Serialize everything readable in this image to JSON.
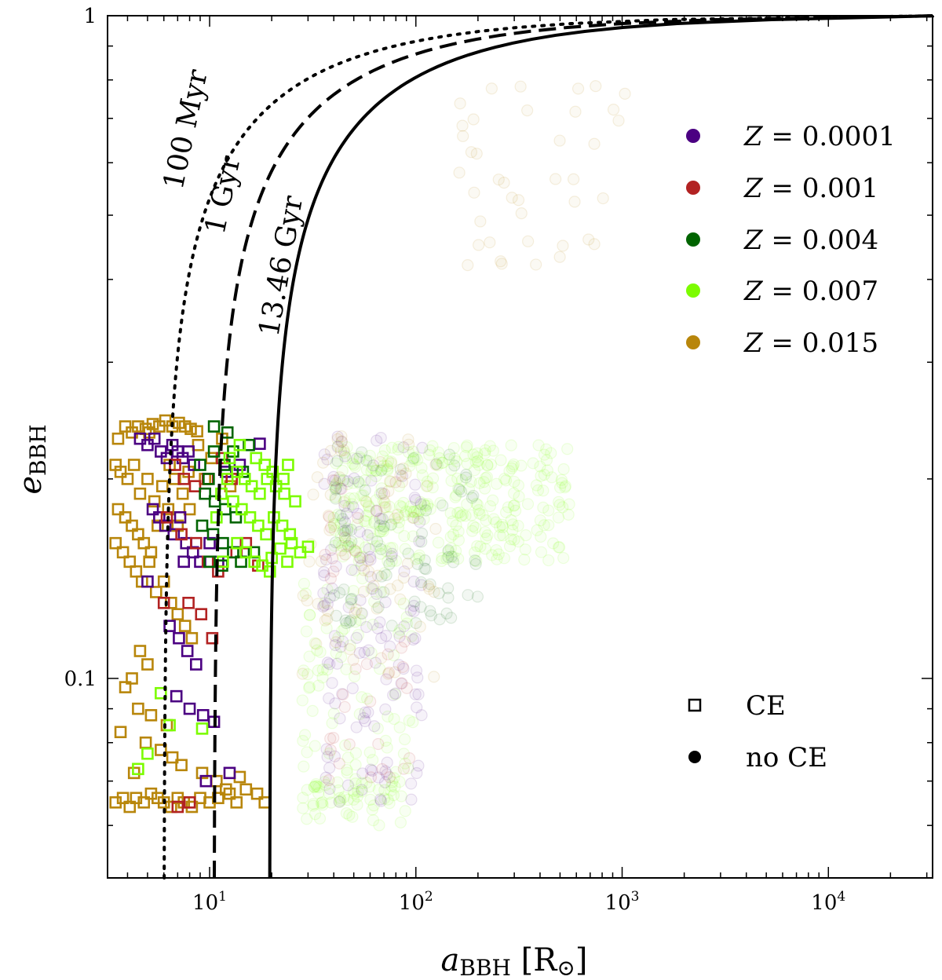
{
  "chart_data": {
    "type": "scatter",
    "title": "",
    "xlabel": {
      "base": "a",
      "sub": "BBH",
      "unit": " [R",
      "unit_sym": "⊙",
      "unit_close": "]"
    },
    "ylabel": {
      "base": "e",
      "sub": "BBH"
    },
    "x_scale": "log",
    "y_scale": "log",
    "xlim": [
      3.2,
      32000
    ],
    "ylim": [
      0.05,
      1.0
    ],
    "x_ticks": [
      {
        "value": 10,
        "base": "10",
        "exp": "1"
      },
      {
        "value": 100,
        "base": "10",
        "exp": "2"
      },
      {
        "value": 1000,
        "base": "10",
        "exp": "3"
      },
      {
        "value": 10000,
        "base": "10",
        "exp": "4"
      }
    ],
    "y_ticks": [
      {
        "value": 0.1,
        "label": "0.1"
      },
      {
        "value": 1.0,
        "label": "1"
      }
    ],
    "curves": [
      {
        "label": "100 Myr",
        "style": "dotted",
        "a0": 6.0
      },
      {
        "label": "1 Gyr",
        "style": "dashed",
        "a0": 10.5
      },
      {
        "label": "13.46 Gyr",
        "style": "solid",
        "a0": 19.5
      }
    ],
    "series": [
      {
        "name": "Z = 0.0001",
        "z_label": "Z",
        "z_value": "0.0001",
        "color": "#4b0082"
      },
      {
        "name": "Z = 0.001",
        "z_label": "Z",
        "z_value": "0.001",
        "color": "#b22222"
      },
      {
        "name": "Z = 0.004",
        "z_label": "Z",
        "z_value": "0.004",
        "color": "#006400"
      },
      {
        "name": "Z = 0.007",
        "z_label": "Z",
        "z_value": "0.007",
        "color": "#7cfc00"
      },
      {
        "name": "Z = 0.015",
        "z_label": "Z",
        "z_value": "0.015",
        "color": "#b8860b"
      }
    ],
    "marker_legend": [
      {
        "label": "CE",
        "marker": "open-square"
      },
      {
        "label": "no CE",
        "marker": "filled-circle"
      }
    ],
    "ce_points": [
      [
        3.5,
        0.065,
        4
      ],
      [
        3.8,
        0.066,
        4
      ],
      [
        4.1,
        0.064,
        4
      ],
      [
        4.4,
        0.066,
        4
      ],
      [
        4.8,
        0.065,
        4
      ],
      [
        5.2,
        0.067,
        4
      ],
      [
        5.6,
        0.066,
        4
      ],
      [
        6.0,
        0.065,
        4
      ],
      [
        6.5,
        0.064,
        4
      ],
      [
        7.0,
        0.066,
        4
      ],
      [
        7.5,
        0.065,
        4
      ],
      [
        8.2,
        0.064,
        4
      ],
      [
        9.0,
        0.066,
        4
      ],
      [
        10.0,
        0.065,
        4
      ],
      [
        11.0,
        0.066,
        4
      ],
      [
        12.5,
        0.067,
        4
      ],
      [
        13.5,
        0.065,
        4
      ],
      [
        15.0,
        0.068,
        4
      ],
      [
        17.0,
        0.067,
        4
      ],
      [
        18.5,
        0.065,
        4
      ],
      [
        3.6,
        0.23,
        4
      ],
      [
        3.9,
        0.24,
        4
      ],
      [
        4.2,
        0.235,
        4
      ],
      [
        4.5,
        0.24,
        4
      ],
      [
        4.9,
        0.238,
        4
      ],
      [
        5.3,
        0.242,
        4
      ],
      [
        5.7,
        0.24,
        4
      ],
      [
        6.1,
        0.245,
        4
      ],
      [
        6.6,
        0.24,
        4
      ],
      [
        7.1,
        0.243,
        4
      ],
      [
        7.6,
        0.24,
        4
      ],
      [
        8.1,
        0.238,
        4
      ],
      [
        8.7,
        0.236,
        4
      ],
      [
        3.5,
        0.21,
        4
      ],
      [
        3.7,
        0.205,
        4
      ],
      [
        4.0,
        0.2,
        4
      ],
      [
        4.3,
        0.21,
        4
      ],
      [
        4.6,
        0.19,
        4
      ],
      [
        5.0,
        0.2,
        4
      ],
      [
        5.4,
        0.185,
        4
      ],
      [
        5.9,
        0.195,
        4
      ],
      [
        6.3,
        0.18,
        4
      ],
      [
        3.6,
        0.18,
        4
      ],
      [
        3.9,
        0.175,
        4
      ],
      [
        4.2,
        0.17,
        4
      ],
      [
        4.5,
        0.165,
        4
      ],
      [
        4.8,
        0.16,
        4
      ],
      [
        5.2,
        0.155,
        4
      ],
      [
        5.6,
        0.17,
        4
      ],
      [
        3.5,
        0.16,
        4
      ],
      [
        3.8,
        0.155,
        4
      ],
      [
        4.1,
        0.15,
        4
      ],
      [
        4.4,
        0.145,
        4
      ],
      [
        4.7,
        0.14,
        4
      ],
      [
        5.1,
        0.15,
        4
      ],
      [
        5.5,
        0.135,
        4
      ],
      [
        6.0,
        0.14,
        4
      ],
      [
        6.5,
        0.13,
        4
      ],
      [
        7.0,
        0.125,
        4
      ],
      [
        7.6,
        0.12,
        4
      ],
      [
        8.2,
        0.115,
        4
      ],
      [
        4.6,
        0.11,
        4
      ],
      [
        5.0,
        0.105,
        4
      ],
      [
        4.2,
        0.1,
        4
      ],
      [
        3.9,
        0.097,
        4
      ],
      [
        4.5,
        0.09,
        4
      ],
      [
        5.2,
        0.088,
        4
      ],
      [
        6.2,
        0.085,
        4
      ],
      [
        3.7,
        0.083,
        4
      ],
      [
        4.9,
        0.08,
        4
      ],
      [
        5.8,
        0.078,
        4
      ],
      [
        6.6,
        0.076,
        4
      ],
      [
        7.3,
        0.074,
        4
      ],
      [
        4.3,
        0.072,
        4
      ],
      [
        9.2,
        0.072,
        4
      ],
      [
        10.8,
        0.07,
        4
      ],
      [
        12.0,
        0.068,
        4
      ],
      [
        14.0,
        0.071,
        4
      ],
      [
        6.8,
        0.2,
        4
      ],
      [
        7.4,
        0.19,
        4
      ],
      [
        8.0,
        0.18,
        4
      ],
      [
        7.0,
        0.17,
        4
      ],
      [
        9.5,
        0.2,
        4
      ],
      [
        10.2,
        0.215,
        4
      ],
      [
        11.5,
        0.23,
        4
      ],
      [
        8.8,
        0.225,
        4
      ],
      [
        12.6,
        0.195,
        4
      ],
      [
        5.1,
        0.235,
        4
      ],
      [
        6.4,
        0.21,
        4
      ],
      [
        7.9,
        0.205,
        4
      ],
      [
        4.6,
        0.23,
        0
      ],
      [
        5.0,
        0.225,
        0
      ],
      [
        5.4,
        0.23,
        0
      ],
      [
        5.8,
        0.22,
        0
      ],
      [
        6.2,
        0.215,
        0
      ],
      [
        6.6,
        0.225,
        0
      ],
      [
        7.0,
        0.22,
        0
      ],
      [
        7.4,
        0.215,
        0
      ],
      [
        7.9,
        0.22,
        0
      ],
      [
        8.4,
        0.21,
        0
      ],
      [
        5.3,
        0.18,
        0
      ],
      [
        5.7,
        0.175,
        0
      ],
      [
        6.1,
        0.17,
        0
      ],
      [
        6.7,
        0.165,
        0
      ],
      [
        7.2,
        0.175,
        0
      ],
      [
        7.7,
        0.16,
        0
      ],
      [
        8.3,
        0.155,
        0
      ],
      [
        9.0,
        0.15,
        0
      ],
      [
        6.4,
        0.12,
        0
      ],
      [
        7.1,
        0.115,
        0
      ],
      [
        7.8,
        0.11,
        0
      ],
      [
        8.6,
        0.105,
        0
      ],
      [
        6.9,
        0.094,
        0
      ],
      [
        8.0,
        0.09,
        0
      ],
      [
        9.3,
        0.088,
        0
      ],
      [
        10.5,
        0.086,
        0
      ],
      [
        12.5,
        0.072,
        0
      ],
      [
        7.5,
        0.15,
        0
      ],
      [
        17.5,
        0.226,
        0
      ],
      [
        14.0,
        0.21,
        0
      ],
      [
        12.0,
        0.205,
        0
      ],
      [
        10.0,
        0.16,
        0
      ],
      [
        11.0,
        0.15,
        0
      ],
      [
        5.0,
        0.14,
        0
      ],
      [
        9.6,
        0.07,
        0
      ],
      [
        6.8,
        0.21,
        1
      ],
      [
        7.5,
        0.2,
        1
      ],
      [
        8.5,
        0.195,
        1
      ],
      [
        9.8,
        0.2,
        1
      ],
      [
        11.5,
        0.215,
        1
      ],
      [
        12.8,
        0.2,
        1
      ],
      [
        6.2,
        0.175,
        1
      ],
      [
        7.3,
        0.165,
        1
      ],
      [
        8.6,
        0.16,
        1
      ],
      [
        9.8,
        0.15,
        1
      ],
      [
        11.0,
        0.145,
        1
      ],
      [
        13.5,
        0.155,
        1
      ],
      [
        15.0,
        0.16,
        1
      ],
      [
        17.2,
        0.148,
        1
      ],
      [
        7.9,
        0.13,
        1
      ],
      [
        9.1,
        0.125,
        1
      ],
      [
        6.0,
        0.13,
        1
      ],
      [
        8.0,
        0.065,
        1
      ],
      [
        7.0,
        0.064,
        1
      ],
      [
        10.3,
        0.115,
        1
      ],
      [
        9.0,
        0.21,
        2
      ],
      [
        10.5,
        0.22,
        2
      ],
      [
        11.8,
        0.21,
        2
      ],
      [
        13.0,
        0.22,
        2
      ],
      [
        14.5,
        0.205,
        2
      ],
      [
        9.5,
        0.19,
        2
      ],
      [
        10.6,
        0.185,
        2
      ],
      [
        11.9,
        0.18,
        2
      ],
      [
        13.4,
        0.175,
        2
      ],
      [
        9.2,
        0.17,
        2
      ],
      [
        10.4,
        0.165,
        2
      ],
      [
        11.6,
        0.16,
        2
      ],
      [
        13.0,
        0.155,
        2
      ],
      [
        10.0,
        0.15,
        2
      ],
      [
        11.5,
        0.148,
        2
      ],
      [
        14.2,
        0.15,
        2
      ],
      [
        10.5,
        0.24,
        2
      ],
      [
        12.2,
        0.235,
        2
      ],
      [
        15.5,
        0.225,
        2
      ],
      [
        9.9,
        0.2,
        2
      ],
      [
        16.4,
        0.155,
        2
      ],
      [
        12.5,
        0.215,
        3
      ],
      [
        13.6,
        0.205,
        3
      ],
      [
        14.8,
        0.2,
        3
      ],
      [
        16.0,
        0.195,
        3
      ],
      [
        17.5,
        0.19,
        3
      ],
      [
        19.0,
        0.2,
        3
      ],
      [
        21.0,
        0.195,
        3
      ],
      [
        23.0,
        0.19,
        3
      ],
      [
        13.0,
        0.185,
        3
      ],
      [
        14.3,
        0.18,
        3
      ],
      [
        15.7,
        0.175,
        3
      ],
      [
        17.2,
        0.17,
        3
      ],
      [
        18.8,
        0.165,
        3
      ],
      [
        20.5,
        0.175,
        3
      ],
      [
        22.5,
        0.17,
        3
      ],
      [
        24.5,
        0.165,
        3
      ],
      [
        13.6,
        0.16,
        3
      ],
      [
        15.0,
        0.155,
        3
      ],
      [
        16.5,
        0.15,
        3
      ],
      [
        18.0,
        0.148,
        3
      ],
      [
        20.0,
        0.152,
        3
      ],
      [
        22.0,
        0.157,
        3
      ],
      [
        25.0,
        0.16,
        3
      ],
      [
        27.5,
        0.155,
        3
      ],
      [
        30.0,
        0.158,
        3
      ],
      [
        12.2,
        0.2,
        3
      ],
      [
        11.4,
        0.19,
        3
      ],
      [
        10.8,
        0.175,
        3
      ],
      [
        14.0,
        0.225,
        3
      ],
      [
        16.8,
        0.215,
        3
      ],
      [
        18.5,
        0.21,
        3
      ],
      [
        20.2,
        0.205,
        3
      ],
      [
        22.8,
        0.2,
        3
      ],
      [
        26.0,
        0.185,
        3
      ],
      [
        19.6,
        0.145,
        3
      ],
      [
        23.8,
        0.15,
        3
      ],
      [
        6.4,
        0.085,
        3
      ],
      [
        5.8,
        0.095,
        3
      ],
      [
        5.0,
        0.077,
        3
      ],
      [
        4.5,
        0.073,
        3
      ],
      [
        9.2,
        0.084,
        3
      ],
      [
        11.6,
        0.15,
        3
      ],
      [
        24.0,
        0.21,
        3
      ]
    ],
    "noce_clouds": [
      {
        "series": 3,
        "log_a": [
          1.6,
          2.75
        ],
        "e": [
          0.15,
          0.225
        ],
        "count": 320
      },
      {
        "series": 3,
        "log_a": [
          1.45,
          2.0
        ],
        "e": [
          0.06,
          0.15
        ],
        "count": 110
      },
      {
        "series": 3,
        "log_a": [
          1.5,
          1.9
        ],
        "e": [
          0.064,
          0.07
        ],
        "count": 40
      },
      {
        "series": 0,
        "log_a": [
          1.55,
          2.05
        ],
        "e": [
          0.065,
          0.24
        ],
        "count": 140
      },
      {
        "series": 2,
        "log_a": [
          1.6,
          2.3
        ],
        "e": [
          0.12,
          0.22
        ],
        "count": 80
      },
      {
        "series": 4,
        "log_a": [
          1.45,
          2.1
        ],
        "e": [
          0.1,
          0.25
        ],
        "count": 70
      },
      {
        "series": 1,
        "log_a": [
          1.55,
          2.0
        ],
        "e": [
          0.07,
          0.2
        ],
        "count": 40
      },
      {
        "series": 4,
        "log_a": [
          2.2,
          3.05
        ],
        "e": [
          0.42,
          0.8
        ],
        "count": 40
      }
    ]
  }
}
